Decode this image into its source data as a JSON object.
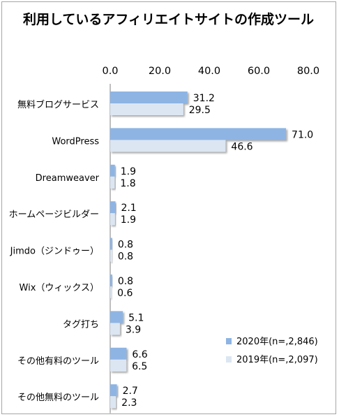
{
  "chart_data": {
    "type": "bar",
    "orientation": "horizontal",
    "title": "利用しているアフィリエイトサイトの作成ツール",
    "xlim": [
      0,
      80
    ],
    "xticks": [
      "0.0",
      "20.0",
      "40.0",
      "60.0",
      "80.0"
    ],
    "grid": false,
    "legend_position": "bottom-right",
    "categories": [
      "無料ブログサービス",
      "WordPress",
      "Dreamweaver",
      "ホームページビルダー",
      "Jimdo（ジンドゥー）",
      "Wix（ウィックス）",
      "タグ打ち",
      "その他有料のツール",
      "その他無料のツール"
    ],
    "series": [
      {
        "name": "2020年(n=,2,846)",
        "color": "#8eb4e3",
        "values": [
          31.2,
          71.0,
          1.9,
          2.1,
          0.8,
          0.8,
          5.1,
          6.6,
          2.7
        ],
        "labels": [
          "31.2",
          "71.0",
          "1.9",
          "2.1",
          "0.8",
          "0.8",
          "5.1",
          "6.6",
          "2.7"
        ]
      },
      {
        "name": "2019年(n=,2,097)",
        "color": "#dce6f2",
        "values": [
          29.5,
          46.6,
          1.8,
          1.9,
          0.8,
          0.6,
          3.9,
          6.5,
          2.3
        ],
        "labels": [
          "29.5",
          "46.6",
          "1.8",
          "1.9",
          "0.8",
          "0.6",
          "3.9",
          "6.5",
          "2.3"
        ]
      }
    ]
  }
}
